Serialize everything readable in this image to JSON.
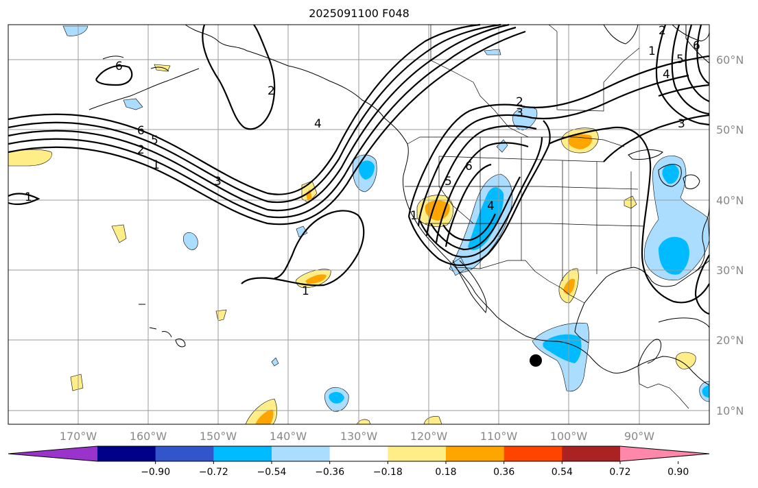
{
  "title": "2025091100 F048",
  "lat_labels": [
    "60°N",
    "50°N",
    "40°N",
    "30°N",
    "20°N",
    "10°N"
  ],
  "lon_labels": [
    "170°W",
    "160°W",
    "150°W",
    "140°W",
    "130°W",
    "120°W",
    "110°W",
    "100°W",
    "90°W"
  ],
  "contour_labels": [
    "6",
    "5",
    "2",
    "1",
    "3",
    "1",
    "6",
    "4",
    "2",
    "3",
    "6",
    "5",
    "4",
    "1",
    "2",
    "4",
    "5",
    "3",
    "6",
    "1",
    "1",
    "2"
  ],
  "colorbar": {
    "colors": [
      "#9933cc",
      "#000088",
      "#3355cc",
      "#00bbff",
      "#aaddff",
      "#ffffff",
      "#ffee88",
      "#ffa500",
      "#ff4400",
      "#aa2222",
      "#ff88aa"
    ],
    "ticks": [
      "−0.90",
      "−0.72",
      "−0.54",
      "−0.36",
      "−0.18",
      "0.18",
      "0.36",
      "0.54",
      "0.72",
      "0.90"
    ]
  }
}
